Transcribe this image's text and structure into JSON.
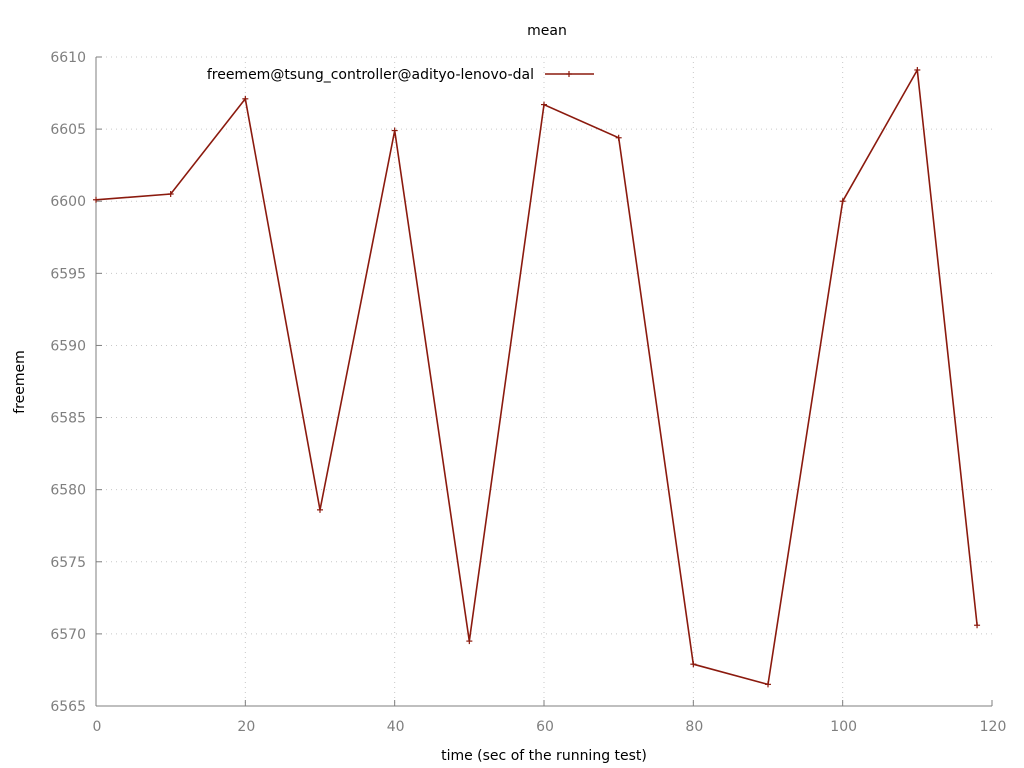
{
  "chart_data": {
    "type": "line",
    "title": "mean",
    "xlabel": "time (sec of the running test)",
    "ylabel": "freemem",
    "xlim": [
      0,
      120
    ],
    "ylim": [
      6565,
      6610
    ],
    "xticks": [
      0,
      20,
      40,
      60,
      80,
      100,
      120
    ],
    "yticks": [
      6565,
      6570,
      6575,
      6580,
      6585,
      6590,
      6595,
      6600,
      6605,
      6610
    ],
    "grid": true,
    "legend_position": "top-left",
    "series": [
      {
        "name": "freemem@tsung_controller@adityo-lenovo-dal",
        "color": "#8b1a0e",
        "x": [
          0,
          10,
          20,
          30,
          40,
          50,
          60,
          70,
          80,
          90,
          100,
          110,
          118
        ],
        "values": [
          6600.1,
          6600.5,
          6607.1,
          6578.6,
          6604.9,
          6569.5,
          6606.7,
          6604.4,
          6567.9,
          6566.5,
          6600.0,
          6609.1,
          6570.6
        ]
      }
    ]
  }
}
